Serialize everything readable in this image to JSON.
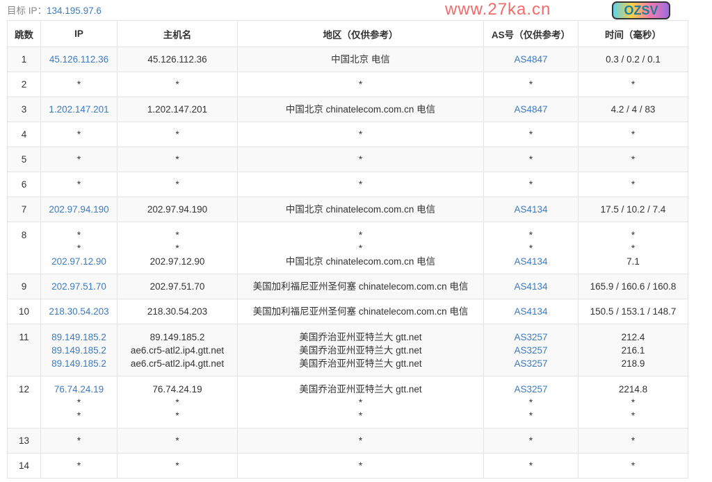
{
  "target": {
    "label": "目标 IP：",
    "ip": "134.195.97.6"
  },
  "columns": [
    "跳数",
    "IP",
    "主机名",
    "地区（仅供参考）",
    "AS号（仅供参考）",
    "时间（毫秒）"
  ],
  "hops": [
    {
      "hop": "1",
      "lines": [
        {
          "ip": "45.126.112.36",
          "host": "45.126.112.36",
          "region": "中国北京 电信",
          "as": "AS4847",
          "time": "0.3 / 0.2 / 0.1"
        }
      ]
    },
    {
      "hop": "2",
      "lines": [
        {
          "ip": "*",
          "host": "*",
          "region": "*",
          "as": "*",
          "time": "*"
        }
      ]
    },
    {
      "hop": "3",
      "lines": [
        {
          "ip": "1.202.147.201",
          "host": "1.202.147.201",
          "region": "中国北京 chinatelecom.com.cn 电信",
          "as": "AS4847",
          "time": "4.2 / 4 / 83"
        }
      ]
    },
    {
      "hop": "4",
      "lines": [
        {
          "ip": "*",
          "host": "*",
          "region": "*",
          "as": "*",
          "time": "*"
        }
      ]
    },
    {
      "hop": "5",
      "lines": [
        {
          "ip": "*",
          "host": "*",
          "region": "*",
          "as": "*",
          "time": "*"
        }
      ]
    },
    {
      "hop": "6",
      "lines": [
        {
          "ip": "*",
          "host": "*",
          "region": "*",
          "as": "*",
          "time": "*"
        }
      ]
    },
    {
      "hop": "7",
      "lines": [
        {
          "ip": "202.97.94.190",
          "host": "202.97.94.190",
          "region": "中国北京 chinatelecom.com.cn 电信",
          "as": "AS4134",
          "time": "17.5 / 10.2 / 7.4"
        }
      ]
    },
    {
      "hop": "8",
      "lines": [
        {
          "ip": "*",
          "host": "*",
          "region": "*",
          "as": "*",
          "time": "*"
        },
        {
          "ip": "*",
          "host": "*",
          "region": "*",
          "as": "*",
          "time": "*"
        },
        {
          "ip": "202.97.12.90",
          "host": "202.97.12.90",
          "region": "中国北京 chinatelecom.com.cn 电信",
          "as": "AS4134",
          "time": "7.1"
        }
      ]
    },
    {
      "hop": "9",
      "lines": [
        {
          "ip": "202.97.51.70",
          "host": "202.97.51.70",
          "region": "美国加利福尼亚州圣何塞 chinatelecom.com.cn 电信",
          "as": "AS4134",
          "time": "165.9 / 160.6 / 160.8"
        }
      ]
    },
    {
      "hop": "10",
      "lines": [
        {
          "ip": "218.30.54.203",
          "host": "218.30.54.203",
          "region": "美国加利福尼亚州圣何塞 chinatelecom.com.cn 电信",
          "as": "AS4134",
          "time": "150.5 / 153.1 / 148.7"
        }
      ]
    },
    {
      "hop": "11",
      "lines": [
        {
          "ip": "89.149.185.2",
          "host": "89.149.185.2",
          "region": "美国乔治亚州亚特兰大 gtt.net",
          "as": "AS3257",
          "time": "212.4"
        },
        {
          "ip": "89.149.185.2",
          "host": "ae6.cr5-atl2.ip4.gtt.net",
          "region": "美国乔治亚州亚特兰大 gtt.net",
          "as": "AS3257",
          "time": "216.1"
        },
        {
          "ip": "89.149.185.2",
          "host": "ae6.cr5-atl2.ip4.gtt.net",
          "region": "美国乔治亚州亚特兰大 gtt.net",
          "as": "AS3257",
          "time": "218.9"
        }
      ]
    },
    {
      "hop": "12",
      "lines": [
        {
          "ip": "76.74.24.19",
          "host": "76.74.24.19",
          "region": "美国乔治亚州亚特兰大 gtt.net",
          "as": "AS3257",
          "time": "2214.8"
        },
        {
          "ip": "*",
          "host": "*",
          "region": "*",
          "as": "*",
          "time": "*"
        },
        {
          "ip": "*",
          "host": "*",
          "region": "*",
          "as": "*",
          "time": "*"
        }
      ]
    },
    {
      "hop": "13",
      "lines": [
        {
          "ip": "*",
          "host": "*",
          "region": "*",
          "as": "*",
          "time": "*"
        }
      ]
    },
    {
      "hop": "14",
      "lines": [
        {
          "ip": "*",
          "host": "*",
          "region": "*",
          "as": "*",
          "time": "*"
        }
      ]
    }
  ],
  "watermark": "www.27ka.cn",
  "sticker": "OZSV",
  "colors": {
    "link": "#3d7ac0",
    "watermark": "#f26b6b",
    "stripe": "#f9f9f9"
  }
}
